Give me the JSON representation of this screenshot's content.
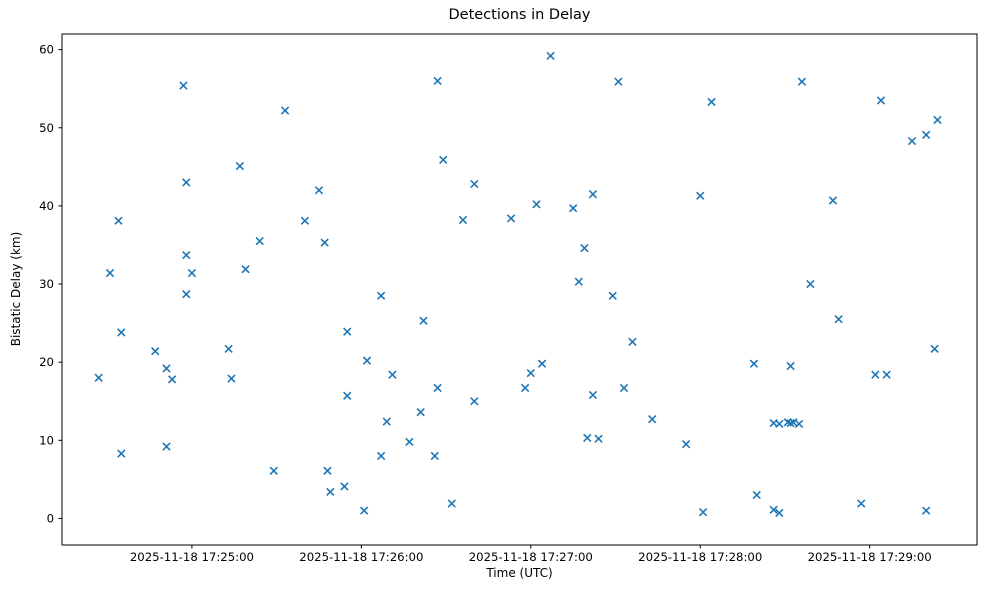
{
  "figure": {
    "background": "#ffffff"
  },
  "chart_data": {
    "type": "scatter",
    "title": "Detections in Delay",
    "xlabel": "Time (UTC)",
    "ylabel": "Bistatic Delay (km)",
    "date": "2025-11-18",
    "marker": "x",
    "marker_color": "#1f77b4",
    "axis_color": "#000000",
    "grid": false,
    "legend_position": "none",
    "axes": {
      "t_min": "17:24:14",
      "t_max": "17:29:38",
      "y_min": -3.4,
      "y_max": 62.0,
      "x_tick_times": [
        "17:25:00",
        "17:26:00",
        "17:27:00",
        "17:28:00",
        "17:29:00"
      ],
      "x_tick_labels": [
        "2025-11-18 17:25:00",
        "2025-11-18 17:26:00",
        "2025-11-18 17:27:00",
        "2025-11-18 17:28:00",
        "2025-11-18 17:29:00"
      ],
      "y_ticks": [
        0,
        10,
        20,
        30,
        40,
        50,
        60
      ]
    },
    "points": [
      [
        "17:24:27",
        18.0
      ],
      [
        "17:24:31",
        31.4
      ],
      [
        "17:24:34",
        38.1
      ],
      [
        "17:24:35",
        23.8
      ],
      [
        "17:24:35",
        8.3
      ],
      [
        "17:24:47",
        21.4
      ],
      [
        "17:24:51",
        19.2
      ],
      [
        "17:24:51",
        9.2
      ],
      [
        "17:24:53",
        17.8
      ],
      [
        "17:24:57",
        55.4
      ],
      [
        "17:24:58",
        43.0
      ],
      [
        "17:24:58",
        33.7
      ],
      [
        "17:24:58",
        28.7
      ],
      [
        "17:25:00",
        31.4
      ],
      [
        "17:25:13",
        21.7
      ],
      [
        "17:25:14",
        17.9
      ],
      [
        "17:25:17",
        45.1
      ],
      [
        "17:25:19",
        31.9
      ],
      [
        "17:25:24",
        35.5
      ],
      [
        "17:25:29",
        6.1
      ],
      [
        "17:25:33",
        52.2
      ],
      [
        "17:25:40",
        38.1
      ],
      [
        "17:25:45",
        42.0
      ],
      [
        "17:25:47",
        35.3
      ],
      [
        "17:25:48",
        6.1
      ],
      [
        "17:25:49",
        3.4
      ],
      [
        "17:25:54",
        4.1
      ],
      [
        "17:25:55",
        15.7
      ],
      [
        "17:25:55",
        23.9
      ],
      [
        "17:26:01",
        1.0
      ],
      [
        "17:26:02",
        20.2
      ],
      [
        "17:26:07",
        28.5
      ],
      [
        "17:26:07",
        8.0
      ],
      [
        "17:26:09",
        12.4
      ],
      [
        "17:26:11",
        18.4
      ],
      [
        "17:26:17",
        9.8
      ],
      [
        "17:26:21",
        13.6
      ],
      [
        "17:26:22",
        25.3
      ],
      [
        "17:26:26",
        8.0
      ],
      [
        "17:26:27",
        56.0
      ],
      [
        "17:26:27",
        16.7
      ],
      [
        "17:26:29",
        45.9
      ],
      [
        "17:26:32",
        1.9
      ],
      [
        "17:26:36",
        38.2
      ],
      [
        "17:26:40",
        42.8
      ],
      [
        "17:26:40",
        15.0
      ],
      [
        "17:26:53",
        38.4
      ],
      [
        "17:26:58",
        16.7
      ],
      [
        "17:27:00",
        18.6
      ],
      [
        "17:27:02",
        40.2
      ],
      [
        "17:27:04",
        19.8
      ],
      [
        "17:27:07",
        59.2
      ],
      [
        "17:27:15",
        39.7
      ],
      [
        "17:27:17",
        30.3
      ],
      [
        "17:27:19",
        34.6
      ],
      [
        "17:27:20",
        10.3
      ],
      [
        "17:27:22",
        41.5
      ],
      [
        "17:27:22",
        15.8
      ],
      [
        "17:27:24",
        10.2
      ],
      [
        "17:27:29",
        28.5
      ],
      [
        "17:27:31",
        55.9
      ],
      [
        "17:27:33",
        16.7
      ],
      [
        "17:27:36",
        22.6
      ],
      [
        "17:27:43",
        12.7
      ],
      [
        "17:27:55",
        9.5
      ],
      [
        "17:28:00",
        41.3
      ],
      [
        "17:28:01",
        0.8
      ],
      [
        "17:28:04",
        53.3
      ],
      [
        "17:28:19",
        19.8
      ],
      [
        "17:28:20",
        3.0
      ],
      [
        "17:28:26",
        12.2
      ],
      [
        "17:28:26",
        1.1
      ],
      [
        "17:28:28",
        12.1
      ],
      [
        "17:28:28",
        0.7
      ],
      [
        "17:28:31",
        12.3
      ],
      [
        "17:28:32",
        12.2
      ],
      [
        "17:28:32",
        19.5
      ],
      [
        "17:28:33",
        12.3
      ],
      [
        "17:28:35",
        12.1
      ],
      [
        "17:28:36",
        55.9
      ],
      [
        "17:28:39",
        30.0
      ],
      [
        "17:28:47",
        40.7
      ],
      [
        "17:28:49",
        25.5
      ],
      [
        "17:28:57",
        1.9
      ],
      [
        "17:29:02",
        18.4
      ],
      [
        "17:29:04",
        53.5
      ],
      [
        "17:29:06",
        18.4
      ],
      [
        "17:29:15",
        48.3
      ],
      [
        "17:29:20",
        49.1
      ],
      [
        "17:29:20",
        1.0
      ],
      [
        "17:29:23",
        21.7
      ],
      [
        "17:29:24",
        51.0
      ]
    ]
  }
}
